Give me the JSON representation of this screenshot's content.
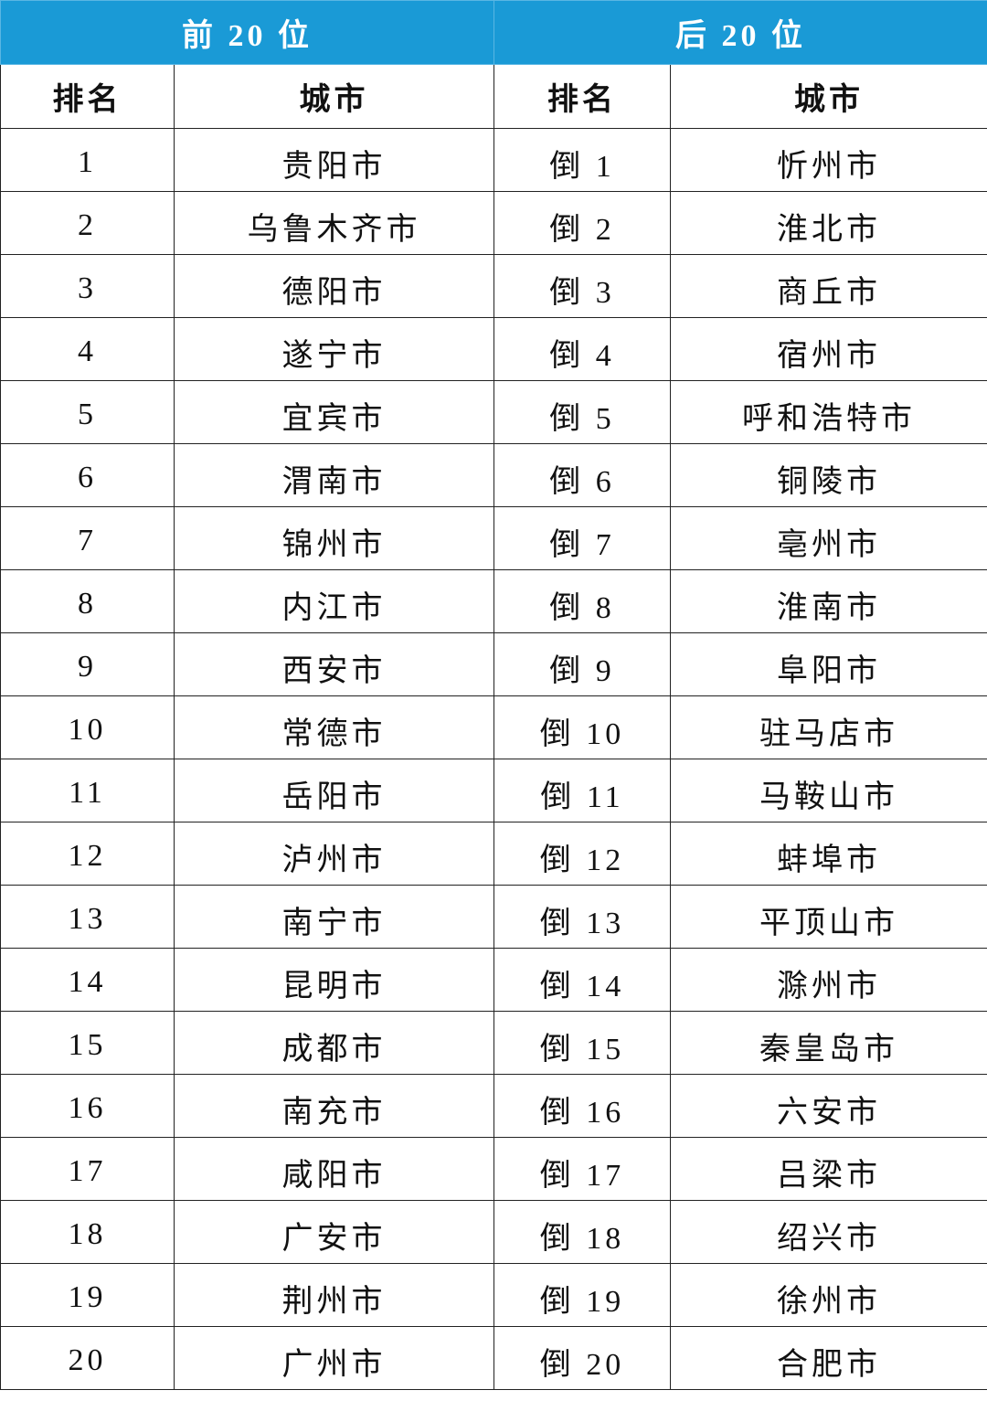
{
  "header": {
    "groups": [
      "前 20 位",
      "后 20 位"
    ]
  },
  "table": {
    "columns": [
      "排名",
      "城市",
      "排名",
      "城市"
    ],
    "rows": [
      [
        1,
        "贵阳市",
        "倒 1",
        "忻州市"
      ],
      [
        2,
        "乌鲁木齐市",
        "倒 2",
        "淮北市"
      ],
      [
        3,
        "德阳市",
        "倒 3",
        "商丘市"
      ],
      [
        4,
        "遂宁市",
        "倒 4",
        "宿州市"
      ],
      [
        5,
        "宜宾市",
        "倒 5",
        "呼和浩特市"
      ],
      [
        6,
        "渭南市",
        "倒 6",
        "铜陵市"
      ],
      [
        7,
        "锦州市",
        "倒 7",
        "亳州市"
      ],
      [
        8,
        "内江市",
        "倒 8",
        "淮南市"
      ],
      [
        9,
        "西安市",
        "倒 9",
        "阜阳市"
      ],
      [
        10,
        "常德市",
        "倒 10",
        "驻马店市"
      ],
      [
        11,
        "岳阳市",
        "倒 11",
        "马鞍山市"
      ],
      [
        12,
        "泸州市",
        "倒 12",
        "蚌埠市"
      ],
      [
        13,
        "南宁市",
        "倒 13",
        "平顶山市"
      ],
      [
        14,
        "昆明市",
        "倒 14",
        "滁州市"
      ],
      [
        15,
        "成都市",
        "倒 15",
        "秦皇岛市"
      ],
      [
        16,
        "南充市",
        "倒 16",
        "六安市"
      ],
      [
        17,
        "咸阳市",
        "倒 17",
        "吕梁市"
      ],
      [
        18,
        "广安市",
        "倒 18",
        "绍兴市"
      ],
      [
        19,
        "荆州市",
        "倒 19",
        "徐州市"
      ],
      [
        20,
        "广州市",
        "倒 20",
        "合肥市"
      ]
    ]
  }
}
